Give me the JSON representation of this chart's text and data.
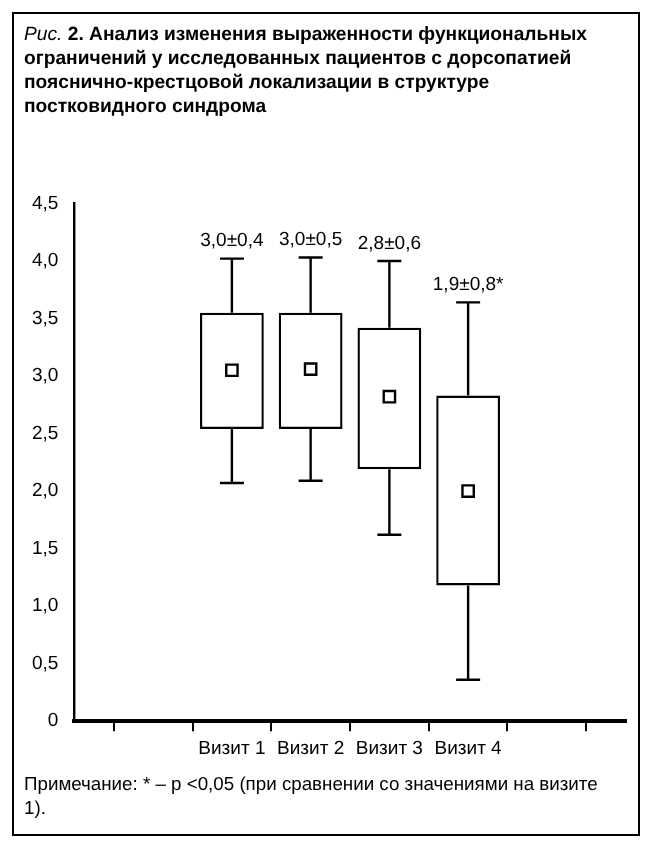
{
  "chart_data": {
    "type": "box",
    "title": "Рис. 2. Анализ изменения выраженности функциональных ограничений у исследованных пациентов с дорсопатией пояснично-крестцовой локализации в структуре постковидного синдрома",
    "categories": [
      null,
      null,
      "Визит 1",
      "Визит 2",
      "Визит 3",
      "Визит 4",
      null,
      null
    ],
    "boxes": [
      null,
      null,
      {
        "low": 2.07,
        "q1": 2.54,
        "median": 3.05,
        "q3": 3.55,
        "high": 4.02
      },
      {
        "low": 2.09,
        "q1": 2.54,
        "median": 3.06,
        "q3": 3.55,
        "high": 4.03
      },
      {
        "low": 1.62,
        "q1": 2.19,
        "median": 2.82,
        "q3": 3.42,
        "high": 4.0
      },
      {
        "low": 0.36,
        "q1": 1.18,
        "median": 2.0,
        "q3": 2.83,
        "high": 3.64
      },
      null,
      null
    ],
    "color": "#000000",
    "ylim": [
      0,
      4.5
    ],
    "yticks": [
      0,
      {
        "value": 0.5,
        "label": "0,5"
      },
      {
        "value": 1,
        "label": "1,0"
      },
      {
        "value": 1.5,
        "label": "1,5"
      },
      {
        "value": 2,
        "label": "2,0"
      },
      {
        "value": 2.5,
        "label": "2,5"
      },
      {
        "value": 3,
        "label": "3,0"
      },
      {
        "value": 3.5,
        "label": "3,5"
      },
      {
        "value": 4,
        "label": "4,0"
      },
      {
        "value": 4.5,
        "label": "4,5"
      }
    ],
    "grid": false,
    "legend": false,
    "marker": "square",
    "annotations": [
      {
        "text": "3,0±0,4",
        "x": "Визит 1",
        "y": 4.02
      },
      {
        "text": "3,0±0,5",
        "x": "Визит 2",
        "y": 4.03
      },
      {
        "text": "2,8±0,6",
        "x": "Визит 3",
        "y": 4.0
      },
      {
        "text": "1,9±0,8*",
        "x": "Визит 4",
        "y": 3.64
      },
      "Примечание: * – p <0,05 (при сравнении со значениями на визите 1)."
    ]
  }
}
